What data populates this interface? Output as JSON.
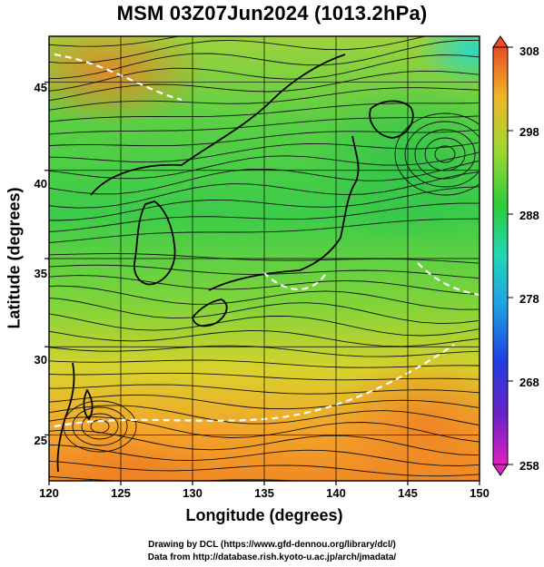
{
  "title": "MSM 03Z07Jun2024 (1013.2hPa)",
  "x_axis": {
    "label": "Longitude (degrees)",
    "range": [
      120,
      150
    ],
    "ticks": [
      "120",
      "125",
      "130",
      "135",
      "140",
      "145",
      "150"
    ]
  },
  "y_axis": {
    "label": "Latitude  (degrees)",
    "range": [
      22.4,
      47.6
    ],
    "ticks": [
      "25",
      "30",
      "35",
      "40",
      "45"
    ]
  },
  "colorbar": {
    "range": [
      258,
      308
    ],
    "ticks": [
      "258",
      "268",
      "278",
      "288",
      "298",
      "308"
    ]
  },
  "credits": [
    "Drawing by DCL (https://www.gfd-dennou.org/library/dcl/)",
    "Data from http://database.rish.kyoto-u.ac.jp/arch/jmadata/"
  ]
}
